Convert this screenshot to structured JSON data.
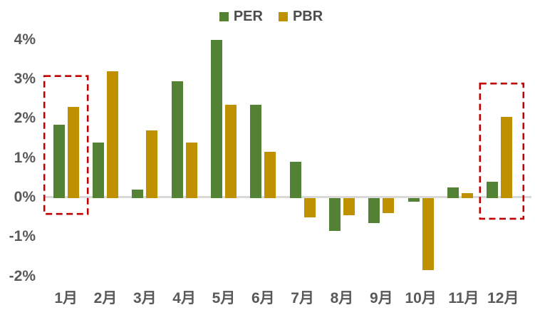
{
  "chart_data": {
    "type": "bar",
    "title": "",
    "unit": "%",
    "categories": [
      "1月",
      "2月",
      "3月",
      "4月",
      "5月",
      "6月",
      "7月",
      "8月",
      "9月",
      "10月",
      "11月",
      "12月"
    ],
    "series": [
      {
        "name": "PER",
        "color": "#548235",
        "values": [
          1.85,
          1.4,
          0.2,
          2.95,
          4.0,
          2.35,
          0.9,
          -0.85,
          -0.65,
          -0.1,
          0.25,
          0.4
        ]
      },
      {
        "name": "PBR",
        "color": "#BF9000",
        "values": [
          2.3,
          3.2,
          1.7,
          1.4,
          2.35,
          1.15,
          -0.5,
          -0.45,
          -0.4,
          -1.85,
          0.1,
          2.05
        ]
      }
    ],
    "yticks": [
      {
        "label": "4%",
        "value": 4
      },
      {
        "label": "3%",
        "value": 3
      },
      {
        "label": "2%",
        "value": 2
      },
      {
        "label": "1%",
        "value": 1
      },
      {
        "label": "0%",
        "value": 0
      },
      {
        "label": "-1%",
        "value": -1
      },
      {
        "label": "-2%",
        "value": -2
      }
    ],
    "ylim": [
      -2,
      4
    ],
    "grid": false,
    "legend_position": "top-center",
    "annotations": [
      {
        "type": "highlight-box",
        "month": "1月",
        "month_index": 0,
        "value_top": 3.08,
        "value_bottom": -0.42,
        "color": "#C00000",
        "line_style": "dashed"
      },
      {
        "type": "highlight-box",
        "month": "12月",
        "month_index": 11,
        "value_top": 2.89,
        "value_bottom": -0.54,
        "color": "#C00000",
        "line_style": "dashed"
      }
    ],
    "colors": {
      "axis_text": "#595959",
      "zero_line": "#D9D9D9",
      "background": "#FFFFFF"
    }
  }
}
